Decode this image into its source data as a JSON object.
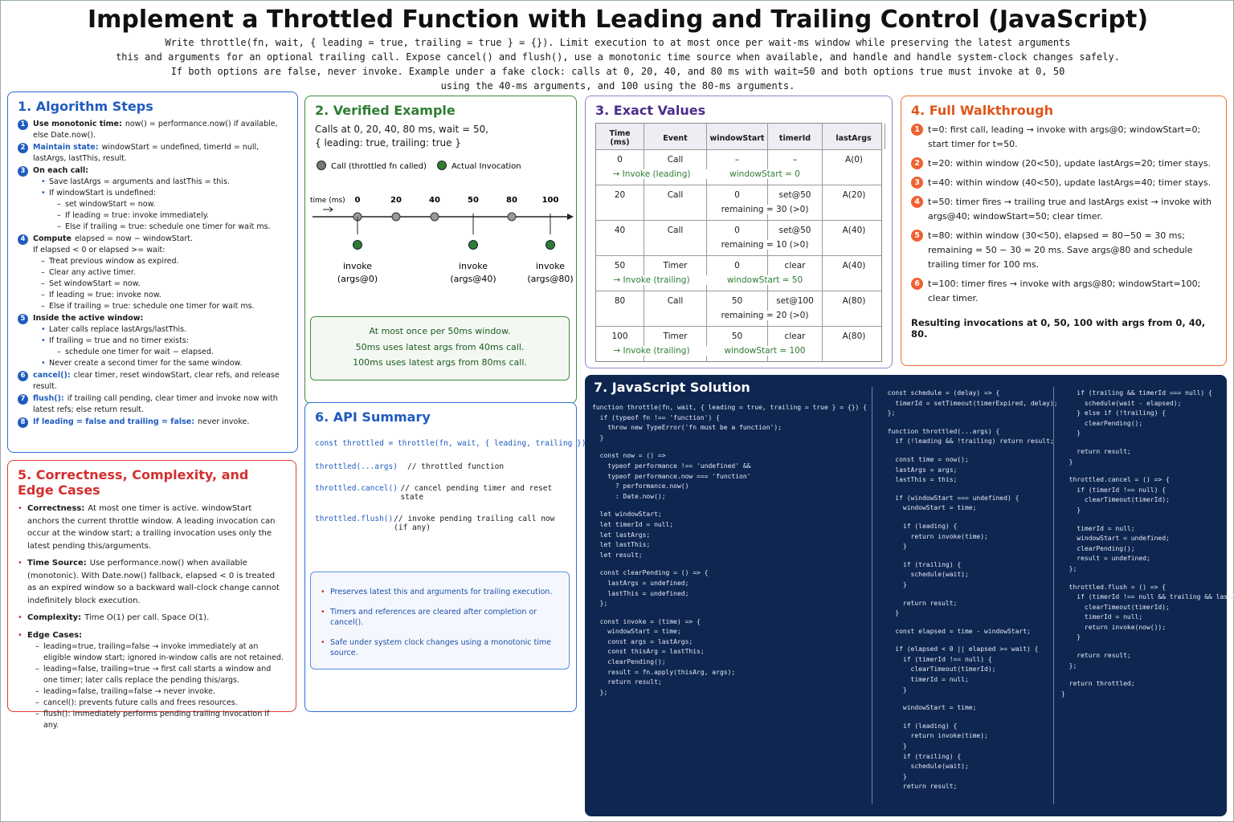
{
  "header": {
    "title": "Implement a Throttled Function with Leading and Trailing Control (JavaScript)",
    "subtitle": [
      "Write throttle(fn, wait, { leading = true, trailing = true } = {}). Limit execution to at most once per wait-ms window while preserving the latest arguments",
      "this and arguments for an optional trailing call. Expose cancel() and flush(), use a monotonic time source when available, and handle and handle system-clock changes safely.",
      "If both options are false, never invoke. Example under a fake clock: calls at 0, 20, 40, and 80 ms with wait=50 and both options true must invoke at 0, 50",
      "using the 40-ms arguments, and 100 using the 80-ms arguments."
    ]
  },
  "algorithm": {
    "title": "1. Algorithm Steps",
    "steps": [
      {
        "num": "1",
        "lead": "Use monotonic time:",
        "text": "now() = performance.now() if available, else Date.now()."
      },
      {
        "num": "2",
        "lead": "Maintain state:",
        "text": "windowStart = undefined, timerId = null, lastArgs, lastThis, result."
      },
      {
        "num": "3",
        "lead": "On each call:",
        "items": [
          "Save lastArgs = arguments and lastThis = this.",
          {
            "text": "If windowStart is undefined:",
            "items": [
              "set windowStart = now.",
              "If leading = true: invoke immediately.",
              "Else if trailing = true: schedule one timer for wait ms."
            ]
          }
        ]
      },
      {
        "num": "4",
        "lead": "Compute",
        "text": "elapsed = now − windowStart.",
        "detail": "If elapsed < 0 or elapsed >= wait:",
        "subitems": [
          "Treat previous window as expired.",
          "Clear any active timer.",
          "Set windowStart = now.",
          "If leading = true: invoke now.",
          "Else if trailing = true: schedule one timer for wait ms."
        ]
      },
      {
        "num": "5",
        "lead": "Inside the active window:",
        "items": [
          "Later calls replace lastArgs/lastThis.",
          {
            "text": "If trailing = true and no timer exists:",
            "items": [
              "schedule one timer for wait − elapsed."
            ]
          },
          "Never create a second timer for the same window."
        ]
      },
      {
        "num": "6",
        "lead": "cancel():",
        "text": "clear timer, reset windowStart, clear refs, and release result."
      },
      {
        "num": "7",
        "lead": "flush():",
        "text": "if trailing call pending, clear timer and invoke now with latest refs; else return result."
      },
      {
        "num": "8",
        "lead": "If leading = false and trailing = false:",
        "text": "never invoke."
      }
    ]
  },
  "example": {
    "title": "2. Verified Example",
    "intro": [
      "Calls at 0, 20, 40, 80 ms, wait = 50,",
      "{ leading: true, trailing: true }"
    ],
    "legend": [
      "Call (throttled fn called)",
      "Actual Invocation"
    ],
    "axis_label": "time (ms)",
    "ticks": [
      0,
      20,
      40,
      50,
      80,
      100
    ],
    "calls": [
      0,
      20,
      40,
      80
    ],
    "invocations": [
      {
        "at": 0,
        "label": "invoke",
        "args": "(args@0)"
      },
      {
        "at": 50,
        "label": "invoke",
        "args": "(args@40)"
      },
      {
        "at": 100,
        "label": "invoke",
        "args": "(args@80)"
      }
    ],
    "note": [
      "At most once per 50ms window.",
      "50ms uses latest args from 40ms call.",
      "100ms uses latest args from 80ms call."
    ]
  },
  "values": {
    "title": "3. Exact Values",
    "columns": [
      "Time (ms)",
      "Event",
      "windowStart",
      "timerId",
      "lastArgs"
    ],
    "rows": [
      {
        "cells": [
          "0",
          "Call",
          "–",
          "–",
          "A(0)"
        ],
        "action": "→ Invoke (leading)",
        "detail": "windowStart = 0"
      },
      {
        "cells": [
          "20",
          "Call",
          "0",
          "set@50",
          "A(20)"
        ],
        "detail": "remaining = 30 (>0)"
      },
      {
        "cells": [
          "40",
          "Call",
          "0",
          "set@50",
          "A(40)"
        ],
        "detail": "remaining = 10 (>0)"
      },
      {
        "cells": [
          "50",
          "Timer",
          "0",
          "clear",
          "A(40)"
        ],
        "action": "→ Invoke (trailing)",
        "detail": "windowStart = 50"
      },
      {
        "cells": [
          "80",
          "Call",
          "50",
          "set@100",
          "A(80)"
        ],
        "detail": "remaining = 20 (>0)"
      },
      {
        "cells": [
          "100",
          "Timer",
          "50",
          "clear",
          "A(80)"
        ],
        "action": "→ Invoke (trailing)",
        "detail": "windowStart = 100"
      }
    ]
  },
  "walkthrough": {
    "title": "4. Full Walkthrough",
    "steps": [
      {
        "num": "1",
        "text": "t=0: first call, leading → invoke with args@0; windowStart=0; start timer for t=50."
      },
      {
        "num": "2",
        "text": "t=20: within window (20<50), update lastArgs=20; timer stays."
      },
      {
        "num": "3",
        "text": "t=40: within window (40<50), update lastArgs=40; timer stays."
      },
      {
        "num": "4",
        "text": "t=50: timer fires → trailing true and lastArgs exist → invoke with args@40; windowStart=50; clear timer."
      },
      {
        "num": "5",
        "text": "t=80: within window (30<50), elapsed = 80−50 = 30 ms; remaining = 50 − 30 = 20 ms. Save args@80 and schedule trailing timer for 100 ms."
      },
      {
        "num": "6",
        "text": "t=100: timer fires → invoke with args@80; windowStart=100; clear timer."
      }
    ],
    "conclusion": "Resulting invocations at 0, 50, 100 with args from 0, 40, 80."
  },
  "correctness": {
    "title": "5. Correctness, Complexity, and Edge Cases",
    "items": [
      {
        "lead": "Correctness:",
        "text": "At most one timer is active. windowStart anchors the current throttle window. A leading invocation can occur at the window start; a trailing invocation uses only the latest pending this/arguments."
      },
      {
        "lead": "Time Source:",
        "text": "Use performance.now() when available (monotonic). With Date.now() fallback, elapsed < 0 is treated as an expired window so a backward wall-clock change cannot indefinitely block execution."
      },
      {
        "lead": "Complexity:",
        "text": "Time O(1) per call. Space O(1)."
      },
      {
        "lead": "Edge Cases:",
        "items": [
          "leading=true, trailing=false → invoke immediately at an eligible window start; ignored in-window calls are not retained.",
          "leading=false, trailing=true → first call starts a window and one timer; later calls replace the pending this/args.",
          "leading=false, trailing=false → never invoke.",
          "cancel(): prevents future calls and frees resources.",
          "flush(): immediately performs pending trailing invocation if any."
        ]
      }
    ]
  },
  "api": {
    "title": "6. API Summary",
    "signature": "const throttled = throttle(fn, wait, { leading, trailing })",
    "rows": [
      {
        "code": "throttled(...args)",
        "comment": "// throttled function"
      },
      {
        "code": "throttled.cancel()",
        "comment": "// cancel pending timer and reset state"
      },
      {
        "code": "throttled.flush()",
        "comment": "// invoke pending trailing call now (if any)"
      }
    ],
    "notes": [
      "Preserves latest this and arguments for trailing execution.",
      "Timers and references are cleared after completion or cancel().",
      "Safe under system clock changes using a monotonic time source."
    ]
  },
  "solution": {
    "title": "7. JavaScript Solution",
    "columns": [
      [
        [
          "function throttle(fn, wait, { leading = true, trailing = true } = {}) {",
          "  if (typeof fn !== 'function') {",
          "    throw new TypeError('fn must be a function');",
          "  }"
        ],
        [
          "  const now = () =>",
          "    typeof performance !== 'undefined' &&",
          "    typeof performance.now === 'function'",
          "      ? performance.now()",
          "      : Date.now();"
        ],
        [
          "  let windowStart;",
          "  let timerId = null;",
          "  let lastArgs;",
          "  let lastThis;",
          "  let result;"
        ],
        [
          "  const clearPending = () => {",
          "    lastArgs = undefined;",
          "    lastThis = undefined;",
          "  };"
        ],
        [
          "  const invoke = (time) => {",
          "    windowStart = time;",
          "    const args = lastArgs;",
          "    const thisArg = lastThis;",
          "    clearPending();",
          "    result = fn.apply(thisArg, args);",
          "    return result;",
          "  };"
        ]
      ],
      [
        [
          "  const schedule = (delay) => {",
          "    timerId = setTimeout(timerExpired, delay);",
          "  };"
        ],
        [
          "  function throttled(...args) {",
          "    if (!leading && !trailing) return result;"
        ],
        [
          "    const time = now();",
          "    lastArgs = args;",
          "    lastThis = this;"
        ],
        [
          "    if (windowStart === undefined) {",
          "      windowStart = time;"
        ],
        [
          "      if (leading) {",
          "        return invoke(time);",
          "      }"
        ],
        [
          "      if (trailing) {",
          "        schedule(wait);",
          "      }"
        ],
        [
          "      return result;",
          "    }"
        ],
        [
          "    const elapsed = time - windowStart;"
        ],
        [
          "    if (elapsed < 0 || elapsed >= wait) {",
          "      if (timerId !== null) {",
          "        clearTimeout(timerId);",
          "        timerId = null;",
          "      }"
        ],
        [
          "      windowStart = time;"
        ],
        [
          "      if (leading) {",
          "        return invoke(time);",
          "      }",
          "      if (trailing) {",
          "        schedule(wait);",
          "      }",
          "      return result;"
        ]
      ],
      [
        [
          "    if (trailing && timerId === null) {",
          "      schedule(wait - elapsed);",
          "    } else if (!trailing) {",
          "      clearPending();",
          "    }"
        ],
        [
          "    return result;",
          "  }"
        ],
        [
          "  throttled.cancel = () => {",
          "    if (timerId !== null) {",
          "      clearTimeout(timerId);",
          "    }"
        ],
        [
          "    timerId = null;",
          "    windowStart = undefined;",
          "    clearPending();",
          "    result = undefined;",
          "  };"
        ],
        [
          "  throttled.flush = () => {",
          "    if (timerId !== null && trailing && lastArgs) {",
          "      clearTimeout(timerId);",
          "      timerId = null;",
          "      return invoke(now());",
          "    }"
        ],
        [
          "    return result;",
          "  };"
        ],
        [
          "  return throttled;",
          "}"
        ]
      ]
    ]
  }
}
